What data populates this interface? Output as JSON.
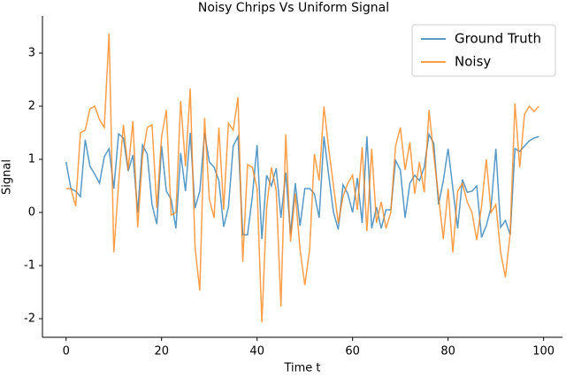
{
  "chart_data": {
    "type": "line",
    "title": "Noisy Chrips Vs Uniform Signal",
    "x_label": "Time t",
    "y_label": "Signal",
    "x": [
      0,
      1,
      2,
      3,
      4,
      5,
      6,
      7,
      8,
      9,
      10,
      11,
      12,
      13,
      14,
      15,
      16,
      17,
      18,
      19,
      20,
      21,
      22,
      23,
      24,
      25,
      26,
      27,
      28,
      29,
      30,
      31,
      32,
      33,
      34,
      35,
      36,
      37,
      38,
      39,
      40,
      41,
      42,
      43,
      44,
      45,
      46,
      47,
      48,
      49,
      50,
      51,
      52,
      53,
      54,
      55,
      56,
      57,
      58,
      59,
      60,
      61,
      62,
      63,
      64,
      65,
      66,
      67,
      68,
      69,
      70,
      71,
      72,
      73,
      74,
      75,
      76,
      77,
      78,
      79,
      80,
      81,
      82,
      83,
      84,
      85,
      86,
      87,
      88,
      89,
      90,
      91,
      92,
      93,
      94,
      95,
      96,
      97,
      98,
      99
    ],
    "series": [
      {
        "name": "Ground Truth",
        "color": "#1f77b4",
        "values": [
          0.95,
          0.45,
          0.4,
          0.3,
          1.37,
          0.87,
          0.72,
          0.55,
          1.05,
          1.2,
          0.45,
          1.48,
          1.4,
          0.78,
          1.08,
          0.0,
          1.27,
          1.1,
          0.15,
          -0.22,
          1.25,
          0.4,
          0.25,
          -0.3,
          1.12,
          0.4,
          1.5,
          0.08,
          0.4,
          1.5,
          0.95,
          0.85,
          0.6,
          -0.27,
          0.1,
          1.25,
          1.43,
          -0.42,
          -0.42,
          0.3,
          1.27,
          -0.5,
          0.7,
          0.5,
          0.83,
          -0.1,
          0.75,
          -0.4,
          0.55,
          -0.25,
          0.45,
          0.45,
          0.35,
          -0.1,
          1.43,
          0.7,
          0.0,
          -0.32,
          0.52,
          0.35,
          0.0,
          0.65,
          -0.2,
          1.43,
          -0.3,
          0.1,
          -0.3,
          0.05,
          0.05,
          0.98,
          0.8,
          -0.1,
          0.55,
          0.7,
          0.6,
          0.85,
          1.47,
          1.3,
          0.15,
          0.6,
          1.2,
          0.45,
          -0.3,
          0.62,
          0.38,
          0.4,
          0.5,
          -0.47,
          -0.25,
          0.1,
          1.2,
          -0.28,
          -0.15,
          -0.42,
          1.2,
          1.15,
          1.25,
          1.35,
          1.4,
          1.43
        ]
      },
      {
        "name": "Noisy",
        "color": "#ff7f0e",
        "values": [
          0.45,
          0.45,
          0.12,
          1.5,
          1.55,
          1.95,
          2.0,
          1.75,
          1.6,
          3.37,
          -0.75,
          0.55,
          1.65,
          0.8,
          1.72,
          -0.28,
          1.05,
          1.6,
          1.65,
          0.08,
          1.43,
          1.93,
          -0.05,
          0.0,
          2.1,
          0.87,
          2.33,
          -0.65,
          -1.47,
          1.78,
          0.25,
          -0.1,
          1.6,
          0.05,
          1.68,
          1.55,
          2.17,
          -0.93,
          0.9,
          0.85,
          0.45,
          -2.07,
          0.1,
          0.85,
          0.42,
          -1.77,
          1.47,
          -0.55,
          0.35,
          -0.7,
          -1.37,
          -0.7,
          1.1,
          0.6,
          2.0,
          1.2,
          0.5,
          -0.2,
          0.3,
          0.55,
          0.7,
          0.05,
          1.23,
          -0.35,
          1.2,
          -0.2,
          0.2,
          -0.3,
          0.0,
          1.25,
          1.6,
          0.8,
          1.32,
          0.35,
          0.95,
          0.38,
          1.93,
          1.08,
          0.3,
          -0.5,
          0.45,
          -0.75,
          0.4,
          0.55,
          0.2,
          0.0,
          -0.52,
          0.12,
          1.0,
          0.0,
          0.15,
          -0.75,
          -1.22,
          -0.4,
          2.05,
          0.85,
          1.85,
          2.0,
          1.9,
          2.0
        ]
      }
    ],
    "xlim": [
      -4.95,
      103.95
    ],
    "ylim": [
      -2.35,
      3.7
    ],
    "xticks": [
      0,
      20,
      40,
      60,
      80,
      100
    ],
    "yticks": [
      -2,
      -1,
      0,
      1,
      2,
      3
    ],
    "legend": "upper right"
  }
}
